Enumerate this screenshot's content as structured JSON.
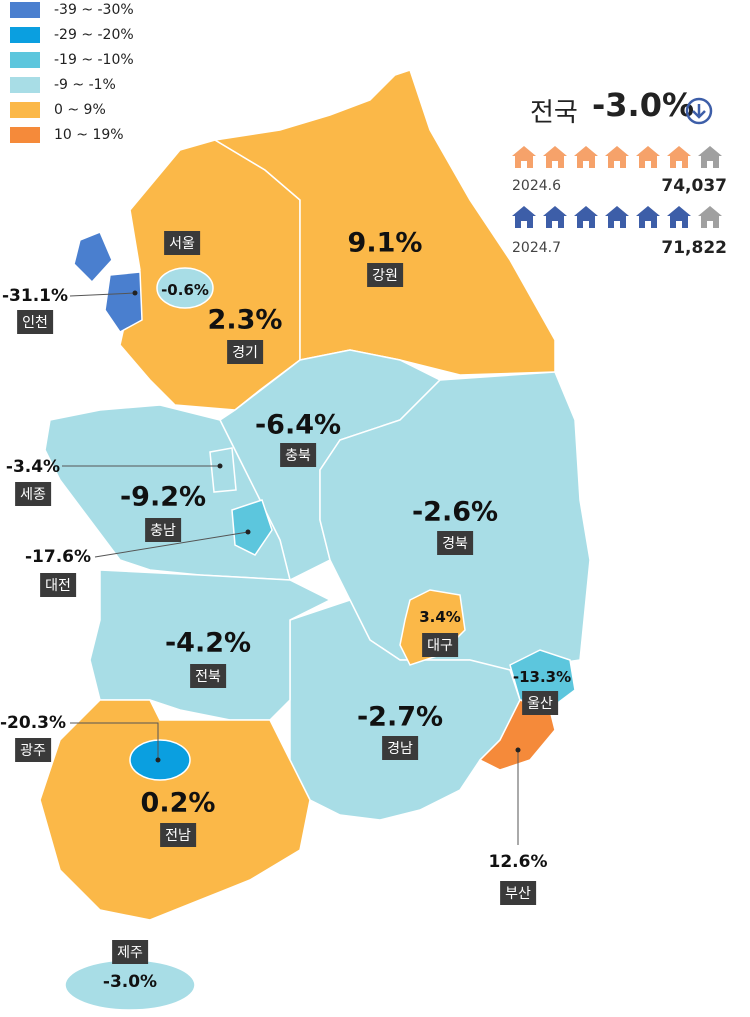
{
  "legend": {
    "items": [
      {
        "label": "-39 ~ -30%",
        "color": "#4a7fcf"
      },
      {
        "label": "-29 ~ -20%",
        "color": "#0a9fe0"
      },
      {
        "label": "-19 ~ -10%",
        "color": "#5cc6dd"
      },
      {
        "label": "-9 ~ -1%",
        "color": "#a8dde6"
      },
      {
        "label": "0 ~ 9%",
        "color": "#fbb848"
      },
      {
        "label": "10 ~ 19%",
        "color": "#f58a3a"
      }
    ]
  },
  "summary": {
    "label": "전국",
    "value": "-3.0%",
    "previous": {
      "date": "2024.6",
      "count": "74,037"
    },
    "current": {
      "date": "2024.7",
      "count": "71,822"
    }
  },
  "regions": [
    {
      "name": "경기",
      "value": "2.3%",
      "color": "#fbb848"
    },
    {
      "name": "강원",
      "value": "9.1%",
      "color": "#fbb848"
    },
    {
      "name": "충북",
      "value": "-6.4%",
      "color": "#a8dde6"
    },
    {
      "name": "충남",
      "value": "-9.2%",
      "color": "#a8dde6"
    },
    {
      "name": "경북",
      "value": "-2.6%",
      "color": "#a8dde6"
    },
    {
      "name": "경남",
      "value": "-2.7%",
      "color": "#a8dde6"
    },
    {
      "name": "전북",
      "value": "-4.2%",
      "color": "#a8dde6"
    },
    {
      "name": "전남",
      "value": "0.2%",
      "color": "#fbb848"
    },
    {
      "name": "서울",
      "value": "-0.6%",
      "color": "#a8dde6"
    },
    {
      "name": "인천",
      "value": "-31.1%",
      "color": "#4a7fcf"
    },
    {
      "name": "세종",
      "value": "-3.4%",
      "color": "#a8dde6"
    },
    {
      "name": "대전",
      "value": "-17.6%",
      "color": "#5cc6dd"
    },
    {
      "name": "대구",
      "value": "3.4%",
      "color": "#fbb848"
    },
    {
      "name": "울산",
      "value": "-13.3%",
      "color": "#5cc6dd"
    },
    {
      "name": "부산",
      "value": "12.6%",
      "color": "#f58a3a"
    },
    {
      "name": "광주",
      "value": "-20.3%",
      "color": "#0a9fe0"
    },
    {
      "name": "제주",
      "value": "-3.0%",
      "color": "#a8dde6"
    }
  ]
}
